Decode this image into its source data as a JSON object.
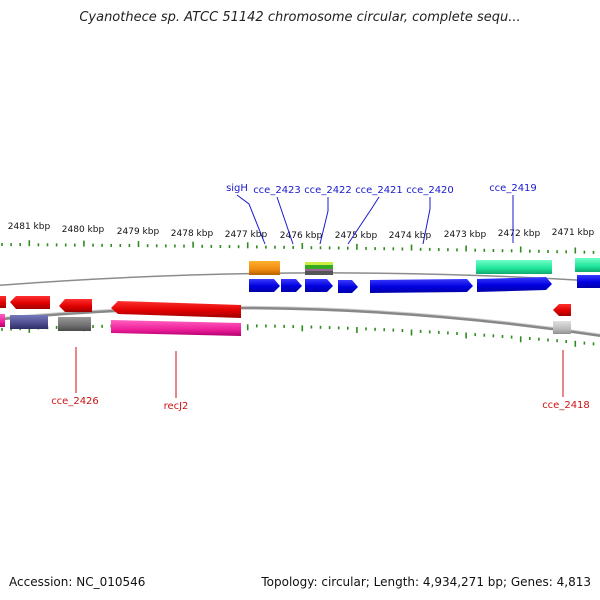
{
  "title": "Cyanothece sp. ATCC 51142 chromosome circular, complete sequ...",
  "footer": {
    "accession": "Accession: NC_010546",
    "summary": "Topology: circular; Length: 4,934,271 bp; Genes: 4,813"
  },
  "colors": {
    "tick_green": "#2e8b1e",
    "plus_strand_label": "#1a1acc",
    "minus_strand_label": "#cc1111",
    "backbone": "#8c8c8c"
  },
  "scale_labels": [
    "2481 kbp",
    "2480 kbp",
    "2479 kbp",
    "2478 kbp",
    "2477 kbp",
    "2476 kbp",
    "2475 kbp",
    "2474 kbp",
    "2473 kbp",
    "2472 kbp",
    "2471 kbp"
  ],
  "gene_labels_top": [
    "sigH",
    "cce_2423",
    "cce_2422",
    "cce_2421",
    "cce_2420",
    "cce_2419"
  ],
  "gene_labels_bottom": [
    "cce_2426",
    "recJ2",
    "cce_2418"
  ]
}
